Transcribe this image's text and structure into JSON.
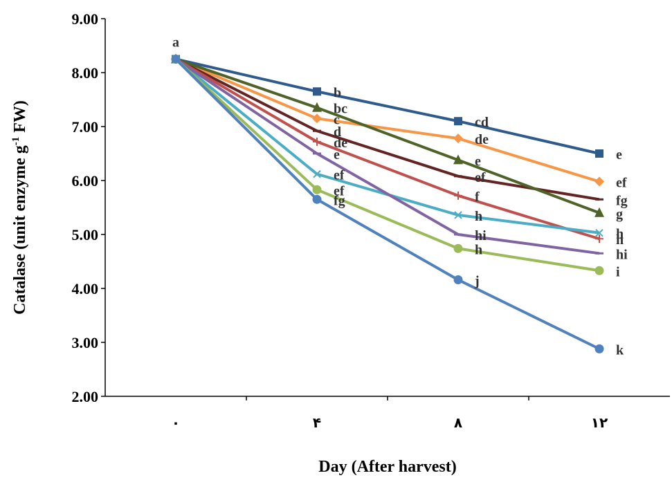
{
  "chart_data": {
    "type": "line",
    "xlabel": "Day (After harvest)",
    "ylabel_main": "Catalase (unit enzyme g",
    "ylabel_sup": "-1",
    "ylabel_end": " FW)",
    "x_tick_labels": [
      "٠",
      "۴",
      "٨",
      "١٢"
    ],
    "x": [
      0,
      4,
      8,
      12
    ],
    "ylim": [
      2.0,
      9.0
    ],
    "y_ticks": [
      "2.00",
      "3.00",
      "4.00",
      "5.00",
      "6.00",
      "7.00",
      "8.00",
      "9.00"
    ],
    "grid": false,
    "series": [
      {
        "color": "#2E5A8C",
        "marker": "square",
        "values": [
          8.25,
          7.65,
          7.1,
          6.5
        ],
        "labels": [
          "",
          "b",
          "cd",
          "e"
        ]
      },
      {
        "color": "#F79646",
        "marker": "diamond",
        "values": [
          8.25,
          7.15,
          6.78,
          5.98
        ],
        "labels": [
          "",
          "c",
          "de",
          "ef"
        ]
      },
      {
        "color": "#632523",
        "marker": "dash",
        "values": [
          8.25,
          6.92,
          6.08,
          5.65
        ],
        "labels": [
          "",
          "d",
          "ef",
          "fg"
        ]
      },
      {
        "color": "#4F6228",
        "marker": "triangle",
        "values": [
          8.25,
          7.35,
          6.38,
          5.4
        ],
        "labels": [
          "",
          "bc",
          "e",
          "g"
        ]
      },
      {
        "color": "#C0504D",
        "marker": "plus",
        "values": [
          8.25,
          6.72,
          5.72,
          4.92
        ],
        "labels": [
          "",
          "de",
          "f",
          "h"
        ]
      },
      {
        "color": "#4BACC6",
        "marker": "x",
        "values": [
          8.25,
          6.12,
          5.36,
          5.03
        ],
        "labels": [
          "",
          "ef",
          "h",
          "h"
        ]
      },
      {
        "color": "#8064A2",
        "marker": "dash",
        "values": [
          8.25,
          6.5,
          5.0,
          4.65
        ],
        "labels": [
          "",
          "e",
          "hi",
          "hi"
        ]
      },
      {
        "color": "#9BBB59",
        "marker": "circle",
        "values": [
          8.25,
          5.83,
          4.74,
          4.33
        ],
        "labels": [
          "",
          "ef",
          "h",
          "i"
        ]
      },
      {
        "color": "#4F81BD",
        "marker": "circle",
        "values": [
          8.25,
          5.65,
          4.16,
          2.88
        ],
        "labels": [
          "",
          "fg",
          "j",
          "k"
        ]
      }
    ],
    "start_label": "a"
  }
}
